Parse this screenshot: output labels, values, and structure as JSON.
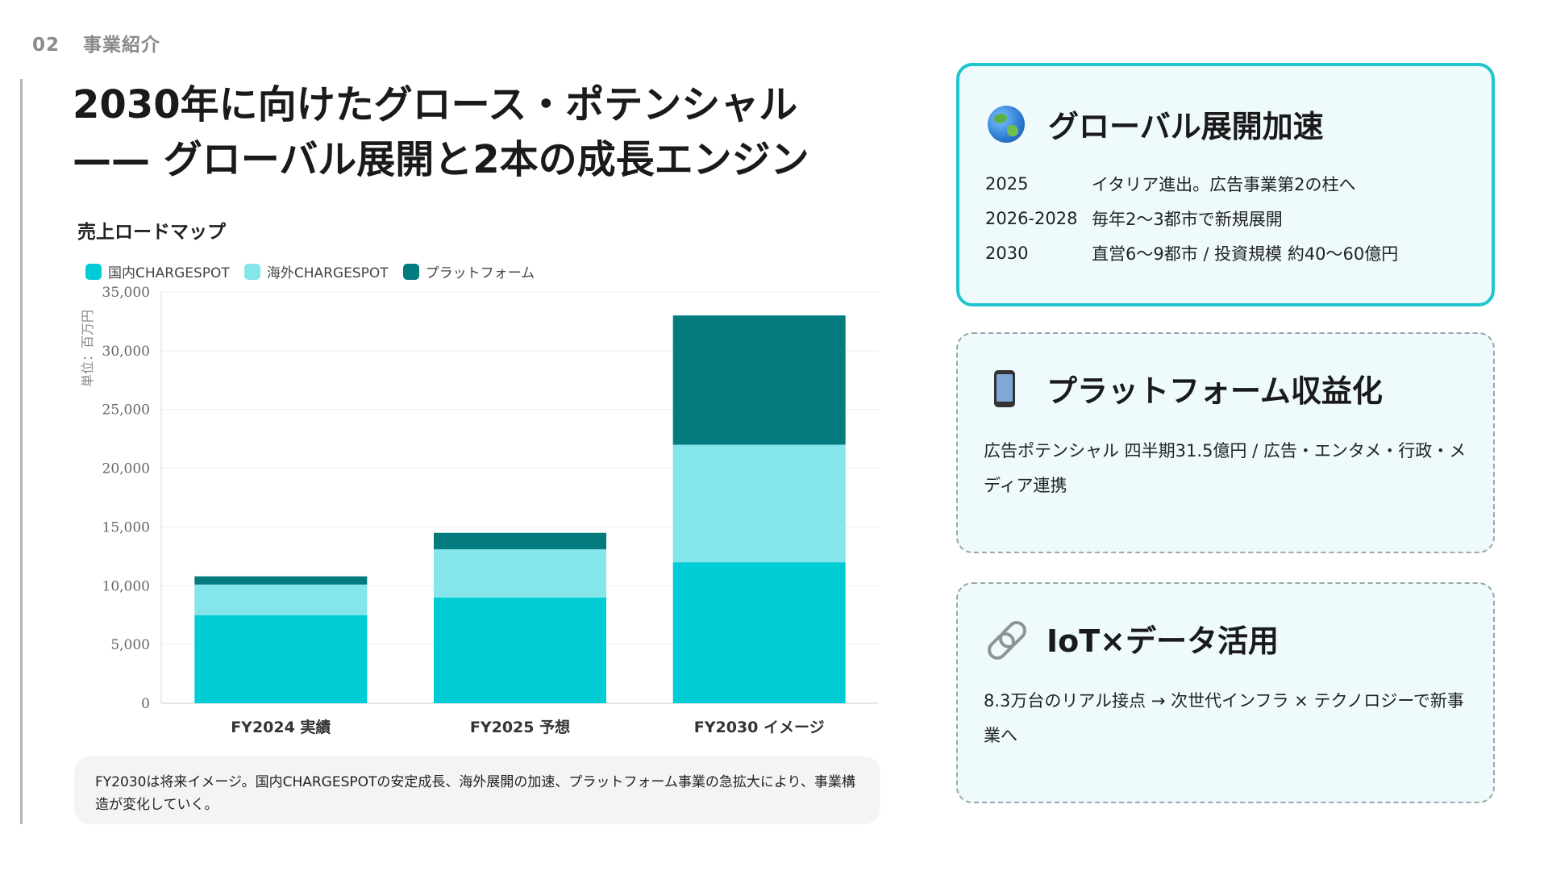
{
  "section": {
    "number": "02",
    "label": "事業紹介"
  },
  "title": {
    "line1": "2030年に向けたグロース・ポテンシャル",
    "line2": "—— グローバル展開と2本の成長エンジン"
  },
  "chart_data": {
    "type": "bar",
    "stacked": true,
    "title": "売上ロードマップ",
    "ylabel": "単位：百万円",
    "xlabel": "",
    "categories": [
      "FY2024 実績",
      "FY2025 予想",
      "FY2030 イメージ"
    ],
    "series": [
      {
        "name": "国内CHARGESPOT",
        "color": "#00ccd6",
        "values": [
          7500,
          9000,
          12000
        ]
      },
      {
        "name": "海外CHARGESPOT",
        "color": "#84e6ea",
        "values": [
          2600,
          4100,
          10000
        ]
      },
      {
        "name": "プラットフォーム",
        "color": "#037b7f",
        "values": [
          700,
          1400,
          11000
        ]
      }
    ],
    "ylim": [
      0,
      35000
    ],
    "yticks": [
      "0",
      "5,000",
      "10,000",
      "15,000",
      "20,000",
      "25,000",
      "30,000",
      "35,000"
    ],
    "grid": true,
    "legend_position": "top-left"
  },
  "note": "FY2030は将来イメージ。国内CHARGESPOTの安定成長、海外展開の加速、プラットフォーム事業の急拡大により、事業構造が変化していく。",
  "cards": {
    "global": {
      "icon": "globe-icon",
      "title": "グローバル展開加速",
      "rows": [
        {
          "year": "2025",
          "text": "イタリア進出。広告事業第2の柱へ"
        },
        {
          "year": "2026-2028",
          "text": "毎年2〜3都市で新規展開"
        },
        {
          "year": "2030",
          "text": "直営6〜9都市 / 投資規模 約40〜60億円"
        }
      ]
    },
    "platform": {
      "icon": "mobile-phone-icon",
      "title": "プラットフォーム収益化",
      "body": "広告ポテンシャル 四半期31.5億円 / 広告・エンタメ・行政・メディア連携"
    },
    "iot": {
      "icon": "link-icon",
      "title": "IoT×データ活用",
      "body": "8.3万台のリアル接点 → 次世代インフラ × テクノロジーで新事業へ"
    }
  },
  "colors": {
    "accent": "#1fc5cf",
    "card_bg": "#eefafc"
  }
}
